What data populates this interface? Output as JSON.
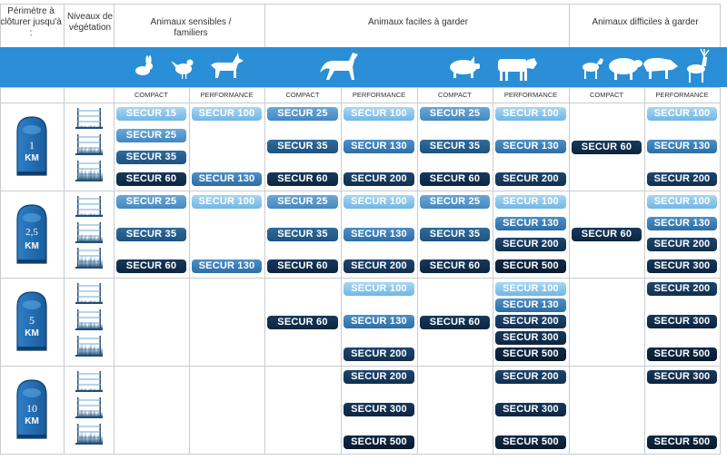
{
  "header": {
    "perimeter": "Périmètre à clôturer jusqu'à :",
    "vegetation": "Niveaux de végétation",
    "groups": [
      {
        "label": "Animaux sensibles / familiers"
      },
      {
        "label": "Animaux faciles à garder"
      },
      {
        "label": "Animaux difficiles à garder"
      }
    ]
  },
  "subheaders": [
    "COMPACT",
    "PERFORMANCE",
    "COMPACT",
    "PERFORMANCE",
    "COMPACT",
    "PERFORMANCE",
    "COMPACT",
    "PERFORMANCE"
  ],
  "animals": [
    "rabbit-icon",
    "hen-icon",
    "dog-icon",
    "horse-icon",
    "pig-icon",
    "cow-icon",
    "goat-icon",
    "sheep-icon",
    "boar-icon",
    "deer-icon"
  ],
  "rows": [
    {
      "num": "1",
      "unit": "KM",
      "cells": [
        [
          "SECUR 15",
          "SECUR 25",
          "SECUR 35",
          "SECUR 60"
        ],
        [
          "SECUR 100",
          "SECUR 130"
        ],
        [
          "SECUR 25",
          "SECUR 35",
          "SECUR 60"
        ],
        [
          "SECUR 100",
          "SECUR 130",
          "SECUR 200"
        ],
        [
          "SECUR 25",
          "SECUR 35",
          "SECUR 60"
        ],
        [
          "SECUR 100",
          "SECUR 130",
          "SECUR 200"
        ],
        [
          "SECUR 60"
        ],
        [
          "SECUR 100",
          "SECUR 130",
          "SECUR 200"
        ]
      ]
    },
    {
      "num": "2,5",
      "unit": "KM",
      "cells": [
        [
          "SECUR 25",
          "SECUR 35",
          "SECUR 60"
        ],
        [
          "SECUR 100",
          "SECUR 130"
        ],
        [
          "SECUR 25",
          "SECUR 35",
          "SECUR 60"
        ],
        [
          "SECUR 100",
          "SECUR 130",
          "SECUR 200"
        ],
        [
          "SECUR 25",
          "SECUR 35",
          "SECUR 60"
        ],
        [
          "SECUR 100",
          "SECUR 130",
          "SECUR 200",
          "SECUR 500"
        ],
        [
          "SECUR 60"
        ],
        [
          "SECUR 100",
          "SECUR 130",
          "SECUR 200",
          "SECUR 300"
        ]
      ]
    },
    {
      "num": "5",
      "unit": "KM",
      "cells": [
        [],
        [],
        [
          "SECUR 60"
        ],
        [
          "SECUR 100",
          "SECUR 130",
          "SECUR 200"
        ],
        [
          "SECUR 60"
        ],
        [
          "SECUR 100",
          "SECUR 130",
          "SECUR 200",
          "SECUR 300",
          "SECUR 500"
        ],
        [],
        [
          "SECUR 200",
          "SECUR 300",
          "SECUR 500"
        ]
      ]
    },
    {
      "num": "10",
      "unit": "KM",
      "cells": [
        [],
        [],
        [],
        [
          "SECUR 200",
          "SECUR 300",
          "SECUR 500"
        ],
        [],
        [
          "SECUR 200",
          "SECUR 300",
          "SECUR 500"
        ],
        [],
        [
          "SECUR 300",
          "SECUR 500"
        ]
      ]
    }
  ]
}
